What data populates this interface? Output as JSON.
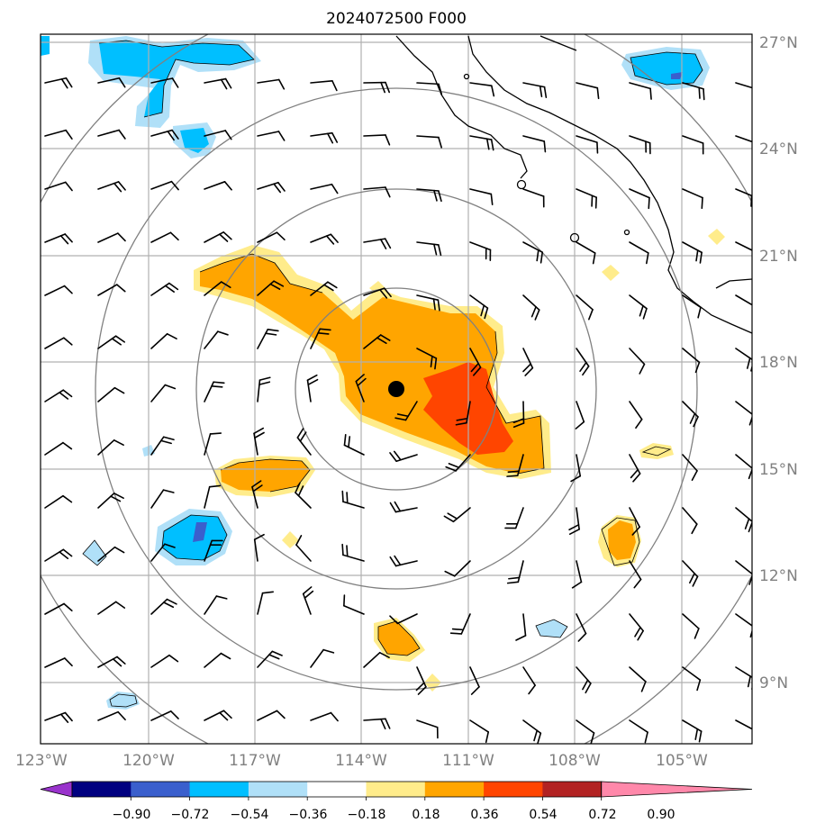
{
  "title": "2024072500 F000",
  "lon_labels": [
    "123°W",
    "120°W",
    "117°W",
    "114°W",
    "111°W",
    "108°W",
    "105°W"
  ],
  "lat_labels": [
    "27°N",
    "24°N",
    "21°N",
    "18°N",
    "15°N",
    "12°N",
    "9°N"
  ],
  "colorbar": {
    "ticks": [
      "−0.90",
      "−0.72",
      "−0.54",
      "−0.36",
      "−0.18",
      "0.18",
      "0.36",
      "0.54",
      "0.72",
      "0.90"
    ],
    "colors": [
      "#9933cc",
      "#000080",
      "#3a5fcd",
      "#00bfff",
      "#b0e0f8",
      "#ffffff",
      "#ffec8b",
      "#ffa500",
      "#ff4500",
      "#b22222",
      "#ff88aa"
    ]
  },
  "map": {
    "center_marker": "storm-center-dot",
    "rings": 4,
    "features": [
      "wind-barbs",
      "coastline",
      "lat-lon-grid",
      "shaded-anomaly-field"
    ]
  }
}
